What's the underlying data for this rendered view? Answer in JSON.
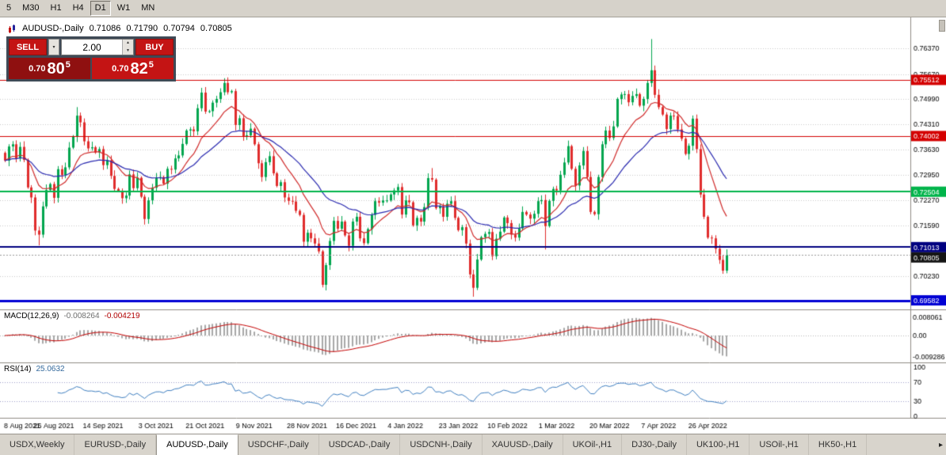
{
  "toolbar": {
    "timeframes": [
      {
        "label": "5",
        "active": false
      },
      {
        "label": "M30",
        "active": false
      },
      {
        "label": "H1",
        "active": false
      },
      {
        "label": "H4",
        "active": false
      },
      {
        "label": "D1",
        "active": true
      },
      {
        "label": "W1",
        "active": false
      },
      {
        "label": "MN",
        "active": false
      }
    ]
  },
  "icons": {
    "dropdown": "▾",
    "spin_up": "▲",
    "spin_down": "▼",
    "more": "▸"
  },
  "chart_header": {
    "symbol": "AUDUSD-,Daily",
    "o": "0.71086",
    "h": "0.71790",
    "l": "0.70794",
    "c": "0.70805"
  },
  "trade_panel": {
    "sell_label": "SELL",
    "buy_label": "BUY",
    "volume": "2.00",
    "sell_price": {
      "small": "0.70",
      "big": "80",
      "sup": "5"
    },
    "buy_price": {
      "small": "0.70",
      "big": "82",
      "sup": "5"
    }
  },
  "chart_data": {
    "type": "candlestick",
    "title": "AUDUSD-,Daily",
    "symbol": "AUDUSD",
    "timeframe": "Daily",
    "up_color": "#00a54e",
    "down_color": "#e02c2c",
    "first_open": 0.7355,
    "closes": [
      0.7334,
      0.7372,
      0.7378,
      0.734,
      0.7371,
      0.7336,
      0.7262,
      0.7235,
      0.7146,
      0.7135,
      0.7211,
      0.7255,
      0.7271,
      0.7234,
      0.7311,
      0.7295,
      0.7316,
      0.7369,
      0.7399,
      0.7455,
      0.7437,
      0.7386,
      0.7367,
      0.737,
      0.7356,
      0.7365,
      0.7322,
      0.7335,
      0.7293,
      0.7258,
      0.7253,
      0.7233,
      0.724,
      0.7297,
      0.726,
      0.7288,
      0.7237,
      0.7177,
      0.7227,
      0.7261,
      0.7288,
      0.729,
      0.7272,
      0.7312,
      0.731,
      0.734,
      0.7348,
      0.7379,
      0.7415,
      0.7418,
      0.7413,
      0.7475,
      0.7517,
      0.7466,
      0.7467,
      0.749,
      0.75,
      0.7518,
      0.7543,
      0.7518,
      0.7521,
      0.743,
      0.7448,
      0.7398,
      0.7402,
      0.742,
      0.7378,
      0.7327,
      0.729,
      0.733,
      0.7346,
      0.73,
      0.7266,
      0.7276,
      0.7235,
      0.7226,
      0.7224,
      0.7199,
      0.7188,
      0.7116,
      0.714,
      0.7125,
      0.7111,
      0.709,
      0.7,
      0.7053,
      0.7118,
      0.7172,
      0.7151,
      0.717,
      0.7133,
      0.7105,
      0.717,
      0.7183,
      0.7125,
      0.7112,
      0.715,
      0.7188,
      0.7225,
      0.7221,
      0.7227,
      0.7227,
      0.7243,
      0.7254,
      0.7263,
      0.7189,
      0.7227,
      0.7222,
      0.716,
      0.718,
      0.717,
      0.7209,
      0.7287,
      0.7283,
      0.7206,
      0.7211,
      0.7183,
      0.7218,
      0.7225,
      0.718,
      0.7147,
      0.7155,
      0.7111,
      0.7028,
      0.6992,
      0.7068,
      0.7128,
      0.7137,
      0.7142,
      0.7077,
      0.7124,
      0.7143,
      0.7181,
      0.7166,
      0.7135,
      0.7127,
      0.7152,
      0.7196,
      0.7189,
      0.7178,
      0.7191,
      0.7225,
      0.7228,
      0.7158,
      0.7226,
      0.7258,
      0.7254,
      0.7296,
      0.7329,
      0.7373,
      0.7312,
      0.7267,
      0.7321,
      0.736,
      0.729,
      0.7196,
      0.719,
      0.729,
      0.7378,
      0.7415,
      0.7395,
      0.7426,
      0.75,
      0.7512,
      0.7513,
      0.7491,
      0.7508,
      0.7513,
      0.7482,
      0.75,
      0.7543,
      0.7577,
      0.7511,
      0.7478,
      0.7458,
      0.7419,
      0.7455,
      0.7454,
      0.7418,
      0.7393,
      0.7352,
      0.7374,
      0.7447,
      0.7365,
      0.7243,
      0.7183,
      0.7127,
      0.7125,
      0.7097,
      0.7067,
      0.7038,
      0.70805
    ],
    "spikes": [
      {
        "i": 9,
        "low": 0.7106
      },
      {
        "i": 19,
        "high": 0.7478
      },
      {
        "i": 58,
        "high": 0.7551
      },
      {
        "i": 84,
        "low": 0.6993
      },
      {
        "i": 113,
        "high": 0.7314
      },
      {
        "i": 124,
        "low": 0.6968
      },
      {
        "i": 143,
        "low": 0.7095
      },
      {
        "i": 171,
        "high": 0.7661
      },
      {
        "i": 183,
        "high": 0.7458
      },
      {
        "i": 190,
        "low": 0.703
      },
      {
        "i": 191,
        "low": 0.7031
      }
    ],
    "x_labels": [
      {
        "i": 0,
        "label": "8 Aug 2021"
      },
      {
        "i": 13,
        "label": "26 Aug 2021"
      },
      {
        "i": 26,
        "label": "14 Sep 2021"
      },
      {
        "i": 40,
        "label": "3 Oct 2021"
      },
      {
        "i": 53,
        "label": "21 Oct 2021"
      },
      {
        "i": 66,
        "label": "9 Nov 2021"
      },
      {
        "i": 80,
        "label": "28 Nov 2021"
      },
      {
        "i": 93,
        "label": "16 Dec 2021"
      },
      {
        "i": 106,
        "label": "4 Jan 2022"
      },
      {
        "i": 120,
        "label": "23 Jan 2022"
      },
      {
        "i": 133,
        "label": "10 Feb 2022"
      },
      {
        "i": 146,
        "label": "1 Mar 2022"
      },
      {
        "i": 160,
        "label": "20 Mar 2022"
      },
      {
        "i": 173,
        "label": "7 Apr 2022"
      },
      {
        "i": 186,
        "label": "26 Apr 2022"
      }
    ],
    "y_axis": {
      "top": 0.7715,
      "bottom": 0.6936
    },
    "y_ticks": [
      "0.76370",
      "0.75670",
      "0.74990",
      "0.74310",
      "0.73630",
      "0.72950",
      "0.72270",
      "0.71590",
      "0.70230"
    ],
    "lines": [
      {
        "price": 0.75512,
        "label": "0.75512",
        "color": "#d40000",
        "width": 1
      },
      {
        "price": 0.74002,
        "label": "0.74002",
        "color": "#d40000",
        "width": 1
      },
      {
        "price": 0.72504,
        "label": "0.72504",
        "color": "#00b44a",
        "width": 2
      },
      {
        "price": 0.71013,
        "label": "0.71013",
        "color": "#000080",
        "width": 2
      },
      {
        "price": 0.69582,
        "label": "0.69582",
        "color": "#0000d4",
        "width": 3
      }
    ],
    "current_price": {
      "value": 0.70805,
      "label": "0.70805",
      "color": "#151515"
    },
    "ma": [
      {
        "type": "ema",
        "period": 12,
        "color": "#d02a2a"
      },
      {
        "type": "ema",
        "period": 30,
        "color": "#2a2ab0"
      }
    ],
    "macd": {
      "header": "MACD(12,26,9)",
      "fast": 12,
      "slow": 26,
      "signal": 9,
      "value_main": "-0.008264",
      "value_signal": "-0.004219",
      "axis_labels": [
        "0.008061",
        "0.00",
        "-0.009286"
      ],
      "histogram_color": "#a8a8a8",
      "signal_color": "#c40000"
    },
    "rsi": {
      "header": "RSI(14)",
      "period": 14,
      "value": "25.0632",
      "axis_labels": [
        "100",
        "70",
        "30",
        "0"
      ],
      "levels": [
        70,
        30
      ],
      "line_color": "#3f7fc1"
    }
  },
  "bottom_tabs": {
    "tabs": [
      {
        "label": "USDX,Weekly",
        "active": false
      },
      {
        "label": "EURUSD-,Daily",
        "active": false
      },
      {
        "label": "AUDUSD-,Daily",
        "active": true
      },
      {
        "label": "USDCHF-,Daily",
        "active": false
      },
      {
        "label": "USDCAD-,Daily",
        "active": false
      },
      {
        "label": "USDCNH-,Daily",
        "active": false
      },
      {
        "label": "XAUUSD-,Daily",
        "active": false
      },
      {
        "label": "UKOil-,H1",
        "active": false
      },
      {
        "label": "DJ30-,Daily",
        "active": false
      },
      {
        "label": "UK100-,H1",
        "active": false
      },
      {
        "label": "USOil-,H1",
        "active": false
      },
      {
        "label": "HK50-,H1",
        "active": false
      }
    ],
    "more_arrow": "▸"
  }
}
